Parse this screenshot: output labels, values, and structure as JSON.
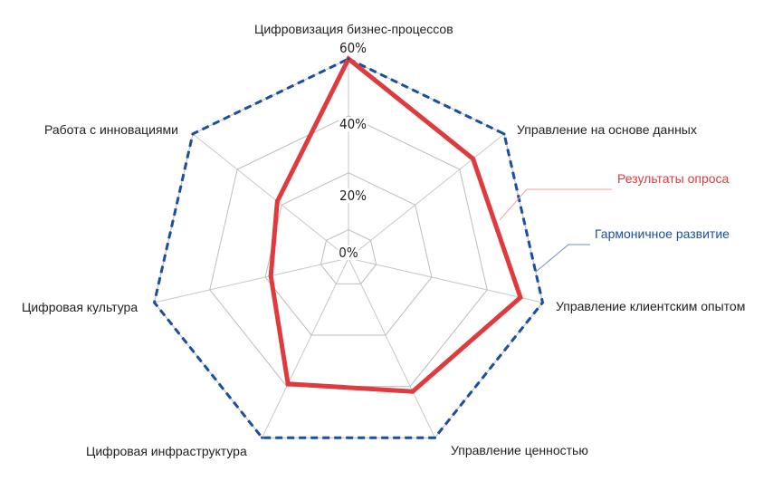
{
  "chart_data": {
    "type": "radar",
    "axes": [
      "Цифровизация бизнес-процессов",
      "Управление на основе данных",
      "Управление клиентским опытом",
      "Управление ценностью",
      "Цифровая инфраструктура",
      "Цифровая культура",
      "Работа с инновациями"
    ],
    "r_range": [
      0,
      60
    ],
    "inner_offset": 10,
    "grid_levels": [
      0,
      20,
      40,
      60
    ],
    "tick_labels": [
      "0%",
      "20%",
      "40%",
      "60%"
    ],
    "series": [
      {
        "name": "Результаты опроса",
        "values": [
          60,
          46,
          52,
          42,
          39,
          18,
          22
        ],
        "color": "#e03a3e",
        "style": "solid"
      },
      {
        "name": "Гармоничное развитие",
        "values": [
          60,
          60,
          60,
          60,
          60,
          60,
          60
        ],
        "color": "#1a4e9e",
        "style": "dashed"
      }
    ],
    "title": "",
    "grid": true
  }
}
